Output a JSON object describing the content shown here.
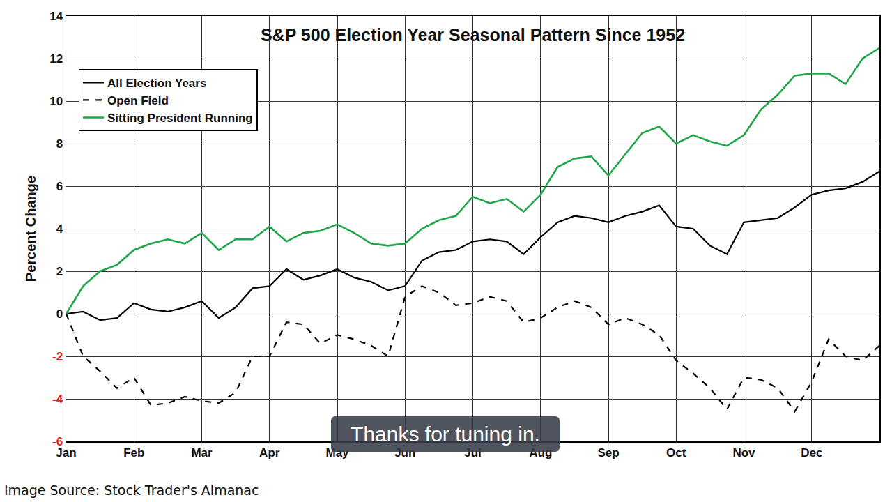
{
  "chart_data": {
    "type": "line",
    "title": "S&P 500 Election Year Seasonal Pattern Since 1952",
    "y_label": "Percent Change",
    "categories": [
      "Jan",
      null,
      null,
      null,
      "Feb",
      null,
      null,
      null,
      "Mar",
      null,
      null,
      null,
      "Apr",
      null,
      null,
      null,
      "May",
      null,
      null,
      null,
      "Jun",
      null,
      null,
      null,
      "Jul",
      null,
      null,
      null,
      "Aug",
      null,
      null,
      null,
      "Sep",
      null,
      null,
      null,
      "Oct",
      null,
      null,
      null,
      "Nov",
      null,
      null,
      null,
      "Dec",
      null,
      null,
      null,
      null
    ],
    "series": [
      {
        "name": "All Election Years",
        "color": "#000000",
        "line_style": "solid",
        "values": [
          0,
          0.1,
          -0.3,
          -0.2,
          0.5,
          0.2,
          0.1,
          0.3,
          0.6,
          -0.2,
          0.3,
          1.2,
          1.3,
          2.1,
          1.6,
          1.8,
          2.1,
          1.7,
          1.5,
          1.1,
          1.3,
          2.5,
          2.9,
          3.0,
          3.4,
          3.5,
          3.4,
          2.8,
          3.6,
          4.3,
          4.6,
          4.5,
          4.3,
          4.6,
          4.8,
          5.1,
          4.1,
          4.0,
          3.2,
          2.8,
          4.3,
          4.4,
          4.5,
          5.0,
          5.6,
          5.8,
          5.9,
          6.2,
          6.7
        ]
      },
      {
        "name": "Open Field",
        "color": "#000000",
        "line_style": "dash",
        "values": [
          0,
          -2.0,
          -2.7,
          -3.5,
          -3.0,
          -4.3,
          -4.2,
          -3.9,
          -4.1,
          -4.2,
          -3.7,
          -2.0,
          -2.0,
          -0.4,
          -0.5,
          -1.4,
          -1.0,
          -1.2,
          -1.5,
          -2.0,
          0.8,
          1.3,
          1.0,
          0.4,
          0.5,
          0.8,
          0.6,
          -0.4,
          -0.2,
          0.3,
          0.6,
          0.3,
          -0.5,
          -0.2,
          -0.5,
          -1.0,
          -2.2,
          -2.8,
          -3.5,
          -4.5,
          -3.0,
          -3.1,
          -3.5,
          -4.6,
          -3.2,
          -1.2,
          -2.0,
          -2.2,
          -1.5
        ]
      },
      {
        "name": "Sitting President Running",
        "color": "#1fa54a",
        "line_style": "solid",
        "values": [
          0,
          1.3,
          2.0,
          2.3,
          3.0,
          3.3,
          3.5,
          3.3,
          3.8,
          3.0,
          3.5,
          3.5,
          4.1,
          3.4,
          3.8,
          3.9,
          4.2,
          3.8,
          3.3,
          3.2,
          3.3,
          4.0,
          4.4,
          4.6,
          5.5,
          5.2,
          5.4,
          4.8,
          5.6,
          6.9,
          7.3,
          7.4,
          6.5,
          7.5,
          8.5,
          8.8,
          8.0,
          8.4,
          8.1,
          7.9,
          8.4,
          9.6,
          10.3,
          11.2,
          11.3,
          11.3,
          10.8,
          12.0,
          12.5
        ]
      }
    ],
    "ylim": [
      -6,
      14
    ],
    "yticks": [
      -6,
      -4,
      -2,
      0,
      2,
      4,
      6,
      8,
      10,
      12,
      14
    ],
    "grid": true,
    "legend": "top left"
  },
  "caption": "Thanks for tuning in.",
  "source": "Image Source: Stock Trader's Almanac"
}
